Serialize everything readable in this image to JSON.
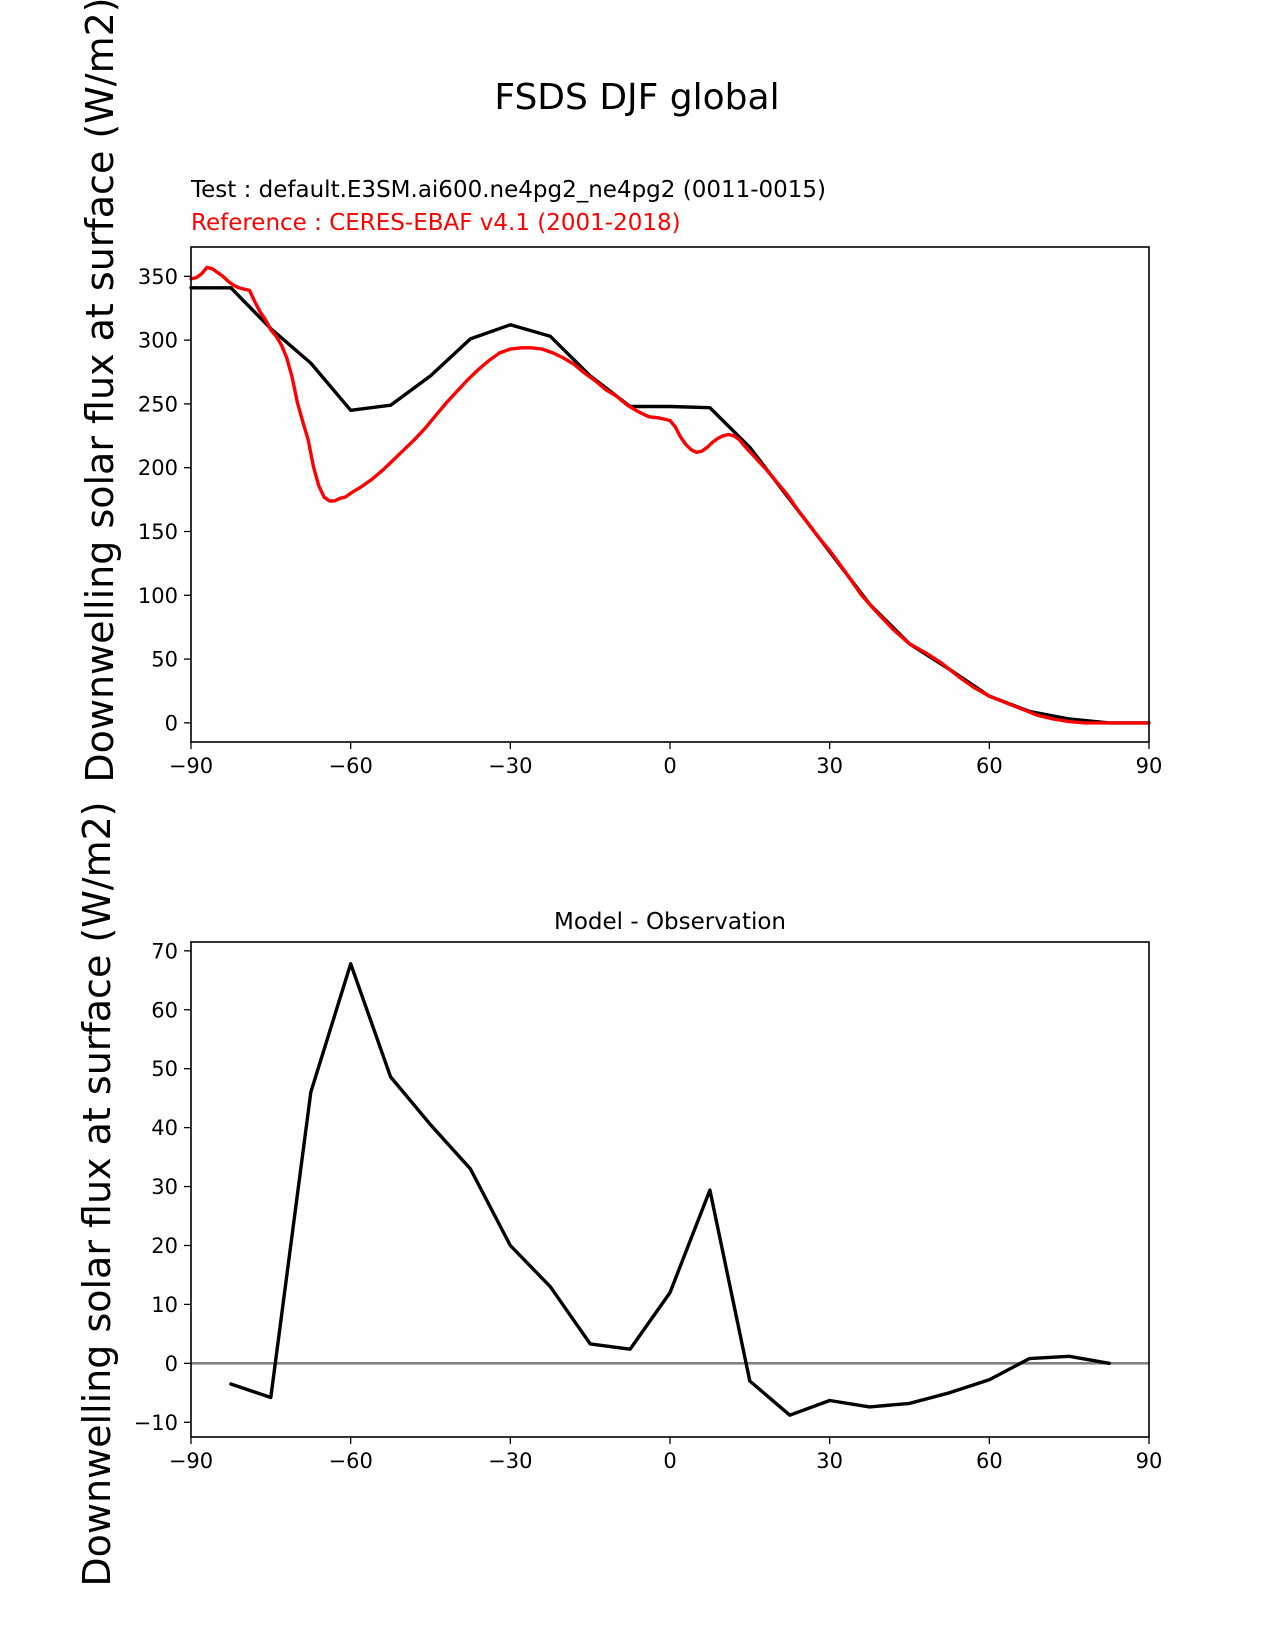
{
  "figure": {
    "suptitle": "FSDS DJF global"
  },
  "chart_data": [
    {
      "type": "line",
      "title_test": "Test : default.E3SM.ai600.ne4pg2_ne4pg2 (0011-0015)",
      "title_reference": "Reference : CERES-EBAF v4.1 (2001-2018)",
      "ylabel": "Downwelling solar flux at surface (W/m2)",
      "xlabel": "",
      "xlim": [
        -90,
        90
      ],
      "ylim": [
        -15,
        373
      ],
      "xticks": [
        -90,
        -60,
        -30,
        0,
        30,
        60,
        90
      ],
      "xtick_labels": [
        "−90",
        "−60",
        "−30",
        "0",
        "30",
        "60",
        "90"
      ],
      "yticks": [
        0,
        50,
        100,
        150,
        200,
        250,
        300,
        350
      ],
      "ytick_labels": [
        "0",
        "50",
        "100",
        "150",
        "200",
        "250",
        "300",
        "350"
      ],
      "series": [
        {
          "name": "Test",
          "color": "#000000",
          "x": [
            -90,
            -82.5,
            -75,
            -67.5,
            -60,
            -52.5,
            -45,
            -37.5,
            -30,
            -22.5,
            -15,
            -7.5,
            0,
            7.5,
            15,
            22.5,
            30,
            37.5,
            45,
            52.5,
            60,
            67.5,
            75,
            82.5,
            90
          ],
          "y": [
            341,
            341,
            309,
            282,
            245,
            249,
            272,
            301,
            312,
            303,
            272,
            248,
            248,
            247,
            216,
            175,
            134,
            93,
            62,
            42,
            21,
            9,
            3,
            0,
            0
          ]
        },
        {
          "name": "Reference",
          "color": "#ff0000",
          "x": [
            -90,
            -89,
            -88,
            -87,
            -86,
            -85,
            -84,
            -83,
            -82,
            -81,
            -80,
            -79,
            -78,
            -77,
            -76,
            -75,
            -74,
            -73,
            -72,
            -71,
            -70,
            -69,
            -68,
            -67,
            -66,
            -65,
            -64,
            -63,
            -62,
            -61,
            -60,
            -58,
            -56,
            -54,
            -52,
            -50,
            -48,
            -46,
            -44,
            -42,
            -40,
            -38,
            -36,
            -34,
            -32,
            -30,
            -28,
            -26,
            -24,
            -22,
            -20,
            -18,
            -16,
            -14,
            -12,
            -10,
            -8,
            -6,
            -4,
            -2,
            0,
            1,
            2,
            3,
            4,
            5,
            6,
            7,
            8,
            9,
            10,
            11,
            12,
            13,
            14,
            16,
            18,
            20,
            22,
            24,
            26,
            28,
            30,
            33,
            36,
            39,
            42,
            45,
            48,
            51,
            54,
            57,
            60,
            63,
            66,
            69,
            72,
            75,
            78,
            81,
            84,
            87,
            90
          ],
          "y": [
            348,
            349,
            352,
            357,
            356,
            353,
            350,
            346,
            343,
            341,
            340,
            339,
            330,
            322,
            316,
            308,
            303,
            296,
            286,
            271,
            251,
            236,
            222,
            201,
            186,
            177,
            174,
            174,
            176,
            177,
            180,
            185,
            191,
            198,
            206,
            214,
            222,
            231,
            241,
            251,
            260,
            269,
            277,
            284,
            290,
            293,
            294,
            294,
            293,
            290,
            286,
            281,
            274,
            268,
            261,
            256,
            249,
            244,
            240,
            239,
            237,
            232,
            224,
            218,
            214,
            212,
            213,
            216,
            220,
            223,
            225,
            226,
            225,
            222,
            217,
            208,
            199,
            189,
            179,
            167,
            156,
            145,
            135,
            118,
            100,
            86,
            73,
            62,
            55,
            47,
            37,
            28,
            21,
            16,
            11,
            6,
            3,
            1,
            0,
            0,
            0,
            0,
            0
          ]
        }
      ]
    },
    {
      "type": "line",
      "title": "Model - Observation",
      "ylabel": "Downwelling solar flux at surface (W/m2)",
      "xlabel": "",
      "xlim": [
        -90,
        90
      ],
      "ylim": [
        -12.5,
        71.5
      ],
      "xticks": [
        -90,
        -60,
        -30,
        0,
        30,
        60,
        90
      ],
      "xtick_labels": [
        "−90",
        "−60",
        "−30",
        "0",
        "30",
        "60",
        "90"
      ],
      "yticks": [
        -10,
        0,
        10,
        20,
        30,
        40,
        50,
        60,
        70
      ],
      "ytick_labels": [
        "−10",
        "0",
        "10",
        "20",
        "30",
        "40",
        "50",
        "60",
        "70"
      ],
      "zero_line_color": "#808080",
      "series": [
        {
          "name": "Model - Observation",
          "color": "#000000",
          "x": [
            -82.5,
            -75,
            -67.5,
            -60,
            -52.5,
            -45,
            -37.5,
            -30,
            -22.5,
            -15,
            -7.5,
            0,
            7.5,
            15,
            22.5,
            30,
            37.5,
            45,
            52.5,
            60,
            67.5,
            75,
            82.5
          ],
          "y": [
            -3.5,
            -5.8,
            46,
            67.8,
            48.6,
            40.5,
            33,
            20,
            13,
            3.3,
            2.4,
            12,
            29.4,
            -3,
            -8.8,
            -6.3,
            -7.4,
            -6.8,
            -5,
            -2.8,
            0.8,
            1.2,
            0
          ]
        }
      ]
    }
  ]
}
